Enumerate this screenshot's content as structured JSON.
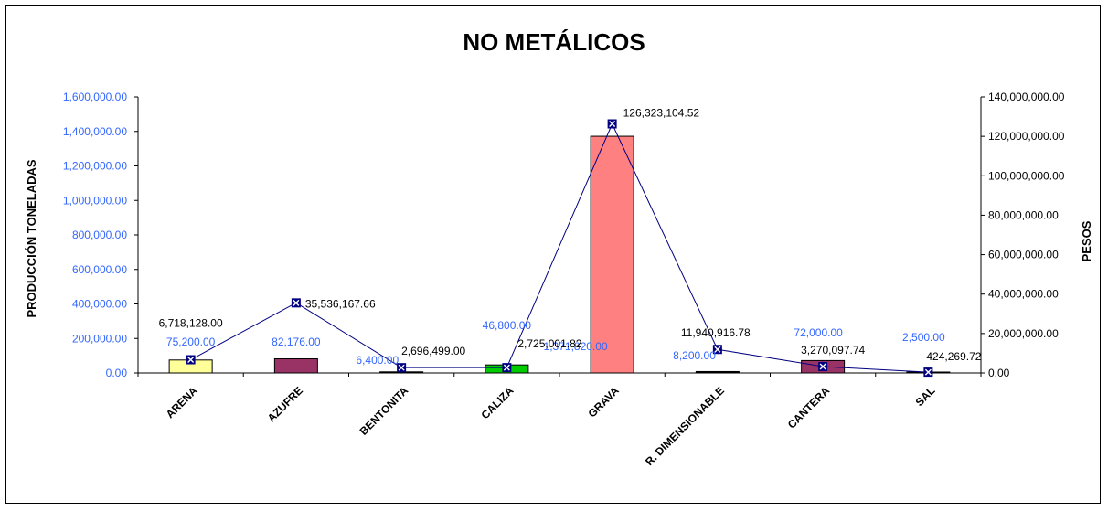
{
  "chart_data": {
    "type": "bar",
    "title": "NO METÁLICOS",
    "ylabel": "PRODUCCIÓN TONELADAS",
    "y2label": "PESOS",
    "categories": [
      "ARENA",
      "AZUFRE",
      "BENTONITA",
      "CALIZA",
      "GRAVA",
      "R. DIMENSIONABLE",
      "CANTERA",
      "SAL"
    ],
    "ylim": [
      0,
      1600000
    ],
    "y2lim": [
      0,
      140000000
    ],
    "y_ticks": [
      "0.00",
      "200,000.00",
      "400,000.00",
      "600,000.00",
      "800,000.00",
      "1,000,000.00",
      "1,200,000.00",
      "1,400,000.00",
      "1,600,000.00"
    ],
    "y2_ticks": [
      "0.00",
      "20,000,000.00",
      "40,000,000.00",
      "60,000,000.00",
      "80,000,000.00",
      "100,000,000.00",
      "120,000,000.00",
      "140,000,000.00"
    ],
    "grid": false,
    "series": [
      {
        "type": "bar",
        "axis": "left",
        "values": [
          75200,
          82176,
          6400,
          46800,
          1371820,
          8200,
          72000,
          2500
        ],
        "labels": [
          "75,200.00",
          "82,176.00",
          "6,400.00",
          "46,800.00",
          "1,371,820.00",
          "8,200.00",
          "72,000.00",
          "2,500.00"
        ],
        "colors": [
          "#ffff99",
          "#993366",
          "#000000",
          "#00cc00",
          "#ff8080",
          "#000000",
          "#993366",
          "#ffffff"
        ]
      },
      {
        "type": "line",
        "axis": "right",
        "values": [
          6718128.0,
          35536167.66,
          2696499.0,
          2725001.82,
          126323104.52,
          11940916.78,
          3270097.74,
          424269.72
        ],
        "labels": [
          "6,718,128.00",
          "35,536,167.66",
          "2,696,499.00",
          "2,725,001.82",
          "126,323,104.52",
          "11,940,916.78",
          "3,270,097.74",
          "424,269.72"
        ],
        "color": "#000080"
      }
    ]
  }
}
